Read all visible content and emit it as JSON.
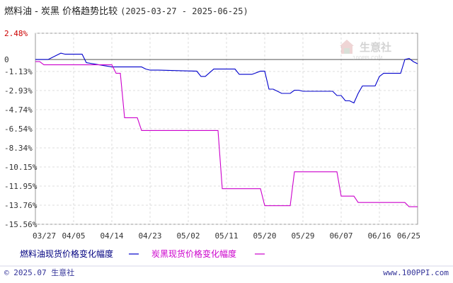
{
  "chart_data": {
    "type": "line",
    "title": "燃料油 - 炭黑 价格趋势比较",
    "date_range": "(2025-03-27 - 2025-06-25)",
    "yticks": [
      "2.48%",
      "0",
      "-1.13%",
      "-2.93%",
      "-4.74%",
      "-6.54%",
      "-8.34%",
      "-10.15%",
      "-11.95%",
      "-13.76%",
      "-15.56%"
    ],
    "ytick_values": [
      2.48,
      0,
      -1.13,
      -2.93,
      -4.74,
      -6.54,
      -8.34,
      -10.15,
      -11.95,
      -13.76,
      -15.56
    ],
    "xticks": [
      "03/27",
      "04/05",
      "04/14",
      "04/23",
      "05/02",
      "05/11",
      "05/20",
      "05/29",
      "06/07",
      "06/16",
      "06/25"
    ],
    "ylim": [
      -15.56,
      2.48
    ],
    "grid": true,
    "legend_position": "bottom",
    "series": [
      {
        "name": "燃料油现货价格变化幅度",
        "color": "#0000cc",
        "x": [
          "03/27",
          "03/30",
          "04/02",
          "04/03",
          "04/07",
          "04/08",
          "04/11",
          "04/14",
          "04/21",
          "04/22",
          "04/23",
          "04/25",
          "05/04",
          "05/05",
          "05/06",
          "05/08",
          "05/13",
          "05/14",
          "05/17",
          "05/19",
          "05/20",
          "05/21",
          "05/22",
          "05/24",
          "05/26",
          "05/27",
          "05/28",
          "05/29",
          "06/05",
          "06/06",
          "06/07",
          "06/08",
          "06/09",
          "06/10",
          "06/11",
          "06/12",
          "06/15",
          "06/16",
          "06/17",
          "06/18",
          "06/21",
          "06/22",
          "06/23",
          "06/24",
          "06/25"
        ],
        "values": [
          0,
          0,
          0.6,
          0.5,
          0.5,
          -0.3,
          -0.5,
          -0.7,
          -0.7,
          -0.9,
          -1.0,
          -1.0,
          -1.1,
          -1.6,
          -1.6,
          -0.9,
          -0.9,
          -1.4,
          -1.4,
          -1.1,
          -1.1,
          -2.8,
          -2.8,
          -3.2,
          -3.2,
          -2.9,
          -2.9,
          -3.0,
          -3.0,
          -3.4,
          -3.4,
          -3.9,
          -3.9,
          -4.1,
          -3.2,
          -2.5,
          -2.5,
          -1.6,
          -1.3,
          -1.3,
          -1.3,
          0,
          0.1,
          -0.2,
          -0.4
        ]
      },
      {
        "name": "炭黑现货价格变化幅度",
        "color": "#cc00cc",
        "x": [
          "03/27",
          "03/28",
          "03/29",
          "04/14",
          "04/15",
          "04/16",
          "04/17",
          "04/20",
          "04/21",
          "04/22",
          "05/09",
          "05/10",
          "05/11",
          "05/19",
          "05/20",
          "05/26",
          "05/27",
          "05/29",
          "06/06",
          "06/07",
          "06/10",
          "06/11",
          "06/22",
          "06/23",
          "06/25"
        ],
        "values": [
          -0.2,
          -0.2,
          -0.5,
          -0.5,
          -1.3,
          -1.3,
          -5.5,
          -5.5,
          -6.7,
          -6.7,
          -6.7,
          -12.2,
          -12.2,
          -12.2,
          -13.8,
          -13.8,
          -10.6,
          -10.6,
          -10.6,
          -12.9,
          -12.9,
          -13.5,
          -13.5,
          -13.9,
          -13.9
        ]
      }
    ]
  },
  "watermark": {
    "brand": "生意社",
    "url": "100PPI.COM"
  },
  "footer": {
    "copyright": "© 2025.07 生意社",
    "url": "www.100PPI.com"
  }
}
